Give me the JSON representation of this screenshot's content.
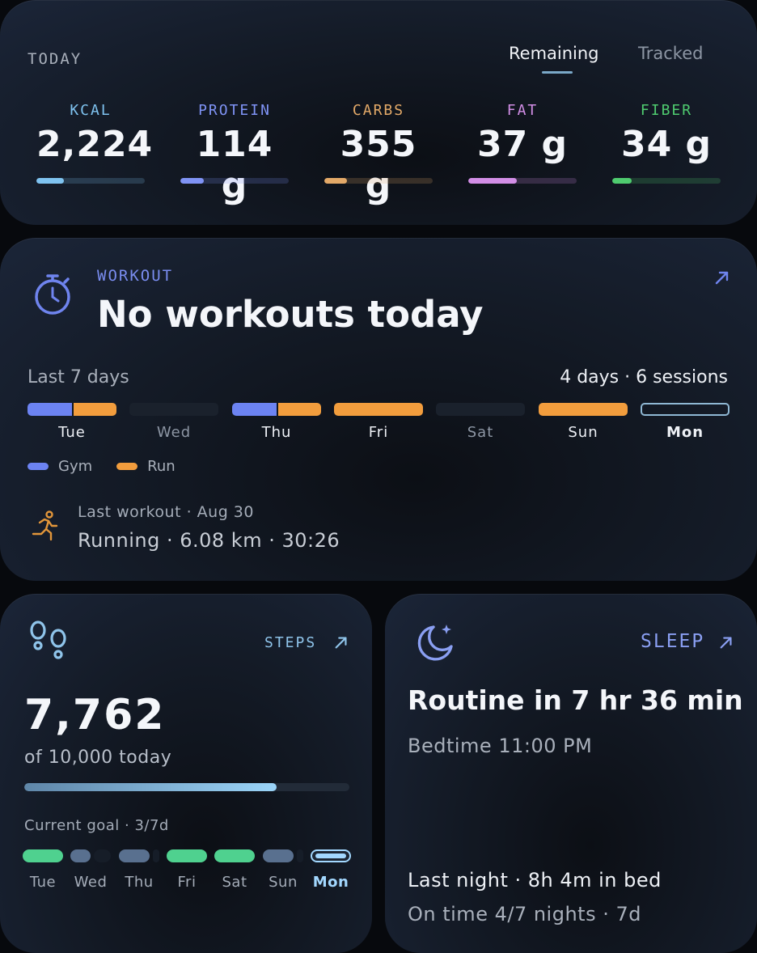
{
  "colors": {
    "kcal": "#7fc3f0",
    "protein": "#7f93f5",
    "carbs": "#e3a968",
    "fat": "#d28ee6",
    "fiber": "#4fcb6f",
    "gym": "#6c83f2",
    "run": "#f29d3d",
    "goal_met": "#4fd18f",
    "goal_partial": "#59708f",
    "sleep_accent": "#8a9ff2"
  },
  "nutrition": {
    "title": "TODAY",
    "tabs": [
      {
        "label": "Remaining",
        "active": true
      },
      {
        "label": "Tracked",
        "active": false
      }
    ],
    "macros": [
      {
        "label": "KCAL",
        "value": "2,224",
        "progress": 0.25,
        "color": "#7fc3f0"
      },
      {
        "label": "PROTEIN",
        "value": "114 g",
        "progress": 0.22,
        "color": "#7f93f5"
      },
      {
        "label": "CARBS",
        "value": "355 g",
        "progress": 0.21,
        "color": "#e3a968"
      },
      {
        "label": "FAT",
        "value": "37 g",
        "progress": 0.45,
        "color": "#d28ee6"
      },
      {
        "label": "FIBER",
        "value": "34 g",
        "progress": 0.18,
        "color": "#4fcb6f"
      }
    ]
  },
  "workout": {
    "icon": "stopwatch-icon",
    "label": "WORKOUT",
    "title": "No workouts today",
    "period_label": "Last 7 days",
    "summary": "4 days · 6 sessions",
    "days": [
      {
        "name": "Tue",
        "gym": 0.5,
        "run": 0.5,
        "current": false
      },
      {
        "name": "Wed",
        "gym": 0,
        "run": 0,
        "current": false
      },
      {
        "name": "Thu",
        "gym": 0.5,
        "run": 0.5,
        "current": false
      },
      {
        "name": "Fri",
        "gym": 0,
        "run": 1,
        "current": false
      },
      {
        "name": "Sat",
        "gym": 0,
        "run": 0,
        "current": false
      },
      {
        "name": "Sun",
        "gym": 0,
        "run": 1,
        "current": false
      },
      {
        "name": "Mon",
        "gym": 0,
        "run": 0,
        "current": true
      }
    ],
    "legend": [
      {
        "label": "Gym",
        "color": "#6c83f2"
      },
      {
        "label": "Run",
        "color": "#f29d3d"
      }
    ],
    "last_workout_meta": "Last workout · Aug 30",
    "last_workout_detail": "Running · 6.08 km · 30:26"
  },
  "steps": {
    "icon": "footprints-icon",
    "label": "STEPS",
    "value": "7,762",
    "subtitle": "of 10,000 today",
    "progress": 0.7762,
    "goal_label": "Current goal · 3/7d",
    "days": [
      {
        "name": "Tue",
        "status": "met"
      },
      {
        "name": "Wed",
        "status": "partial"
      },
      {
        "name": "Thu",
        "status": "partial"
      },
      {
        "name": "Fri",
        "status": "met"
      },
      {
        "name": "Sat",
        "status": "met"
      },
      {
        "name": "Sun",
        "status": "partial"
      },
      {
        "name": "Mon",
        "status": "current"
      }
    ]
  },
  "sleep": {
    "icon": "moon-stars-icon",
    "label": "SLEEP",
    "title": "Routine in 7 hr 36 min",
    "bedtime": "Bedtime 11:00 PM",
    "last_night": "Last night · 8h 4m in bed",
    "on_time": "On time 4/7 nights · 7d"
  }
}
